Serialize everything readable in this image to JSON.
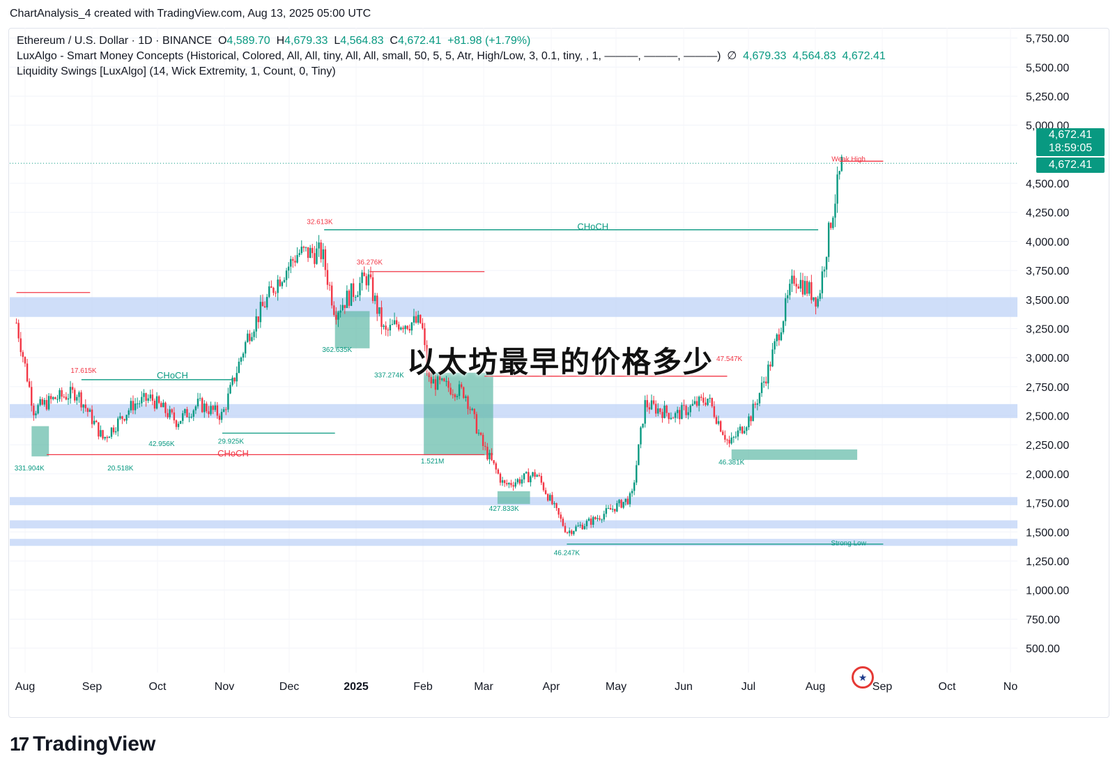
{
  "caption": "ChartAnalysis_4 created with TradingView.com, Aug 13, 2025 05:00 UTC",
  "legend": {
    "symbol": "Ethereum / U.S. Dollar · 1D · BINANCE",
    "o_label": "O",
    "o": "4,589.70",
    "h_label": "H",
    "h": "4,679.33",
    "l_label": "L",
    "l": "4,564.83",
    "c_label": "C",
    "c": "4,672.41",
    "change": "+81.98 (+1.79%)",
    "indicator1": "LuxAlgo - Smart Money Concepts (Historical, Colored, All, All, tiny, All, All, small, 50, 5, 5, Atr, High/Low, 3, 0.1, tiny, , 1, ———, ———, ———)",
    "indicator1_icon": "∅",
    "indicator1_values": [
      "4,679.33",
      "4,564.83",
      "4,672.41"
    ],
    "indicator2": "Liquidity Swings [LuxAlgo] (14, Wick Extremity, 1, Count, 0, Tiny)"
  },
  "price_tag": {
    "price": "4,672.41",
    "countdown": "18:59:05",
    "price2": "4,672.41"
  },
  "overlay_title": "以太坊最早的价格多少",
  "logo_text": "TradingView",
  "logo_mark": "17",
  "flag_icon": "us-flag-icon",
  "colors": {
    "up": "#089981",
    "down": "#f23645",
    "zone": "#bfd3f7",
    "box": "#5fb9a6"
  },
  "chart_data": {
    "type": "candlestick",
    "title": "Ethereum / U.S. Dollar · 1D · BINANCE",
    "y_ticks": [
      5750,
      5500,
      5250,
      5000,
      4500,
      4250,
      4000,
      3750,
      3500,
      3250,
      3000,
      2750,
      2500,
      2250,
      2000,
      1750,
      1500,
      1250,
      1000,
      750,
      500
    ],
    "y_tick_labels": [
      "5,750.00",
      "5,500.00",
      "5,250.00",
      "5,000.00",
      "4,500.00",
      "4,250.00",
      "4,000.00",
      "3,750.00",
      "3,500.00",
      "3,250.00",
      "3,000.00",
      "2,750.00",
      "2,500.00",
      "2,250.00",
      "2,000.00",
      "1,750.00",
      "1,500.00",
      "1,250.00",
      "1,000.00",
      "750.00",
      "500.00"
    ],
    "ylim": [
      330,
      6000
    ],
    "x_labels": [
      "Aug",
      "Sep",
      "Oct",
      "Nov",
      "Dec",
      "2025",
      "Feb",
      "Mar",
      "Apr",
      "May",
      "Jun",
      "Jul",
      "Aug",
      "Sep",
      "Oct",
      "No"
    ],
    "close_series": {
      "dates": [
        "2024-07-28",
        "2024-08-05",
        "2024-08-15",
        "2024-08-25",
        "2024-09-06",
        "2024-09-20",
        "2024-09-28",
        "2024-10-10",
        "2024-10-20",
        "2024-10-31",
        "2024-11-12",
        "2024-11-25",
        "2024-12-05",
        "2024-12-16",
        "2024-12-22",
        "2025-01-06",
        "2025-01-14",
        "2025-01-20",
        "2025-01-31",
        "2025-02-03",
        "2025-02-20",
        "2025-02-28",
        "2025-03-10",
        "2025-03-25",
        "2025-04-08",
        "2025-04-20",
        "2025-05-08",
        "2025-05-14",
        "2025-05-28",
        "2025-06-12",
        "2025-06-22",
        "2025-07-02",
        "2025-07-10",
        "2025-07-22",
        "2025-08-02",
        "2025-08-08",
        "2025-08-13"
      ],
      "close": [
        3300,
        2550,
        2650,
        2700,
        2300,
        2600,
        2650,
        2450,
        2600,
        2500,
        3200,
        3650,
        3900,
        3900,
        3400,
        3700,
        3200,
        3300,
        3300,
        2800,
        2700,
        2250,
        1900,
        2000,
        1500,
        1600,
        1800,
        2600,
        2500,
        2650,
        2250,
        2500,
        2900,
        3700,
        3500,
        4200,
        4672
      ]
    },
    "annotations": [
      {
        "text": "CHoCH",
        "price": 4100,
        "date": "2025-04-20",
        "color": "#089981"
      },
      {
        "text": "CHoCH",
        "price": 2150,
        "date": "2024-11-05",
        "color": "#f23645"
      },
      {
        "text": "CHoCH",
        "price": 2820,
        "date": "2024-10-08",
        "color": "#089981"
      },
      {
        "text": "Weak High",
        "price": 4690,
        "date": "2025-08-16",
        "color": "#f23645"
      },
      {
        "text": "Strong Low",
        "price": 1385,
        "date": "2025-08-16",
        "color": "#089981"
      },
      {
        "text": "32.613K",
        "price": 4150,
        "date": "2024-12-15",
        "color": "#f23645"
      },
      {
        "text": "36.276K",
        "price": 3800,
        "date": "2025-01-07",
        "color": "#f23645"
      },
      {
        "text": "17.615K",
        "price": 2870,
        "date": "2024-08-28",
        "color": "#f23645"
      },
      {
        "text": "47.547K",
        "price": 2970,
        "date": "2025-06-22",
        "color": "#f23645"
      },
      {
        "text": "331.904K",
        "price": 2030,
        "date": "2024-08-03",
        "color": "#089981"
      },
      {
        "text": "20.518K",
        "price": 2030,
        "date": "2024-09-14",
        "color": "#089981"
      },
      {
        "text": "42.956K",
        "price": 2240,
        "date": "2024-10-03",
        "color": "#089981"
      },
      {
        "text": "29.925K",
        "price": 2260,
        "date": "2024-11-04",
        "color": "#089981"
      },
      {
        "text": "362.635K",
        "price": 3050,
        "date": "2024-12-23",
        "color": "#089981"
      },
      {
        "text": "337.274K",
        "price": 2830,
        "date": "2025-01-16",
        "color": "#089981"
      },
      {
        "text": "1.521M",
        "price": 2090,
        "date": "2025-02-05",
        "color": "#089981"
      },
      {
        "text": "427.833K",
        "price": 1680,
        "date": "2025-03-10",
        "color": "#089981"
      },
      {
        "text": "46.247K",
        "price": 1300,
        "date": "2025-04-08",
        "color": "#089981"
      },
      {
        "text": "46.381K",
        "price": 2080,
        "date": "2025-06-23",
        "color": "#089981"
      }
    ],
    "support_zones": [
      {
        "from": 3350,
        "to": 3520
      },
      {
        "from": 2480,
        "to": 2600
      },
      {
        "from": 1730,
        "to": 1800
      },
      {
        "from": 1530,
        "to": 1600
      },
      {
        "from": 1380,
        "to": 1440
      }
    ]
  }
}
